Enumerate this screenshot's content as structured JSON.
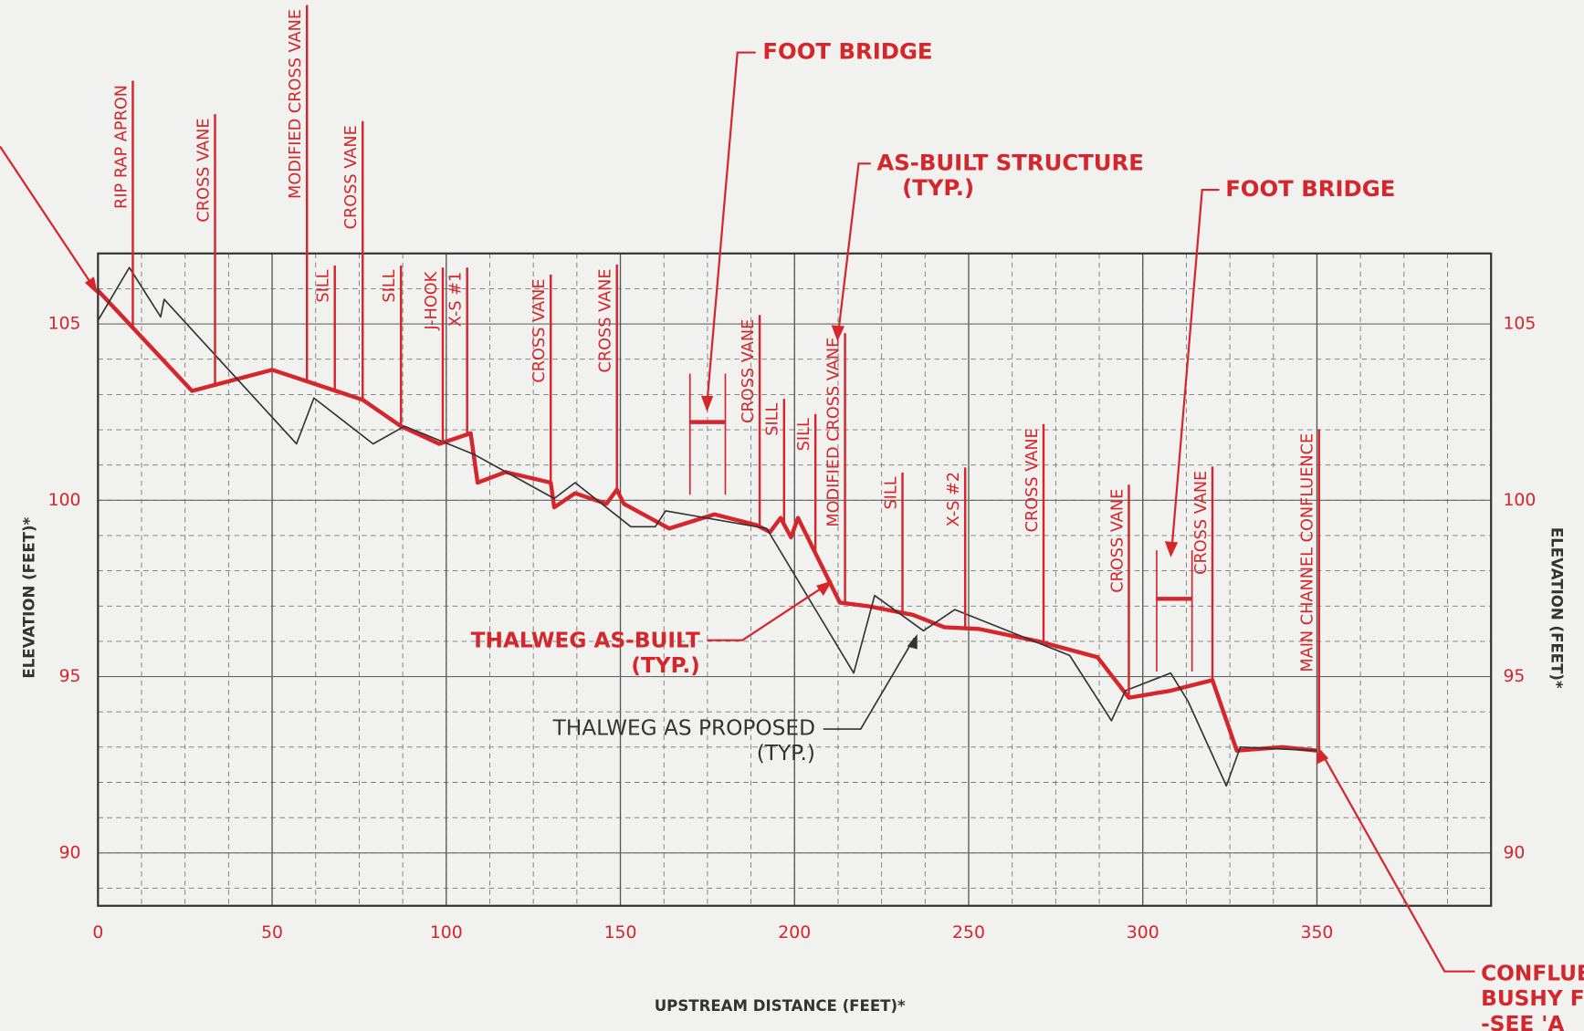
{
  "chart_data": {
    "type": "line",
    "x_label": "UPSTREAM DISTANCE (FEET)*",
    "y_label": "ELEVATION (FEET)*",
    "y2_label": "ELEVATION (FEET)*",
    "xlim": [
      0,
      400
    ],
    "ylim": [
      88.5,
      107
    ],
    "y2lim": [
      88.5,
      107
    ],
    "xticks": [
      0,
      50,
      100,
      150,
      200,
      250,
      300,
      350
    ],
    "yticks": [
      90,
      95,
      100,
      105
    ],
    "y2ticks": [
      90,
      95,
      100,
      105
    ],
    "grid": true,
    "series": [
      {
        "name": "THALWEG AS-BUILT",
        "color": "#d4262b",
        "x": [
          0,
          27,
          50,
          76,
          87,
          98,
          107,
          109,
          117,
          130,
          131,
          137,
          146,
          149,
          151,
          164,
          177,
          189,
          193,
          196,
          199,
          201,
          210,
          213,
          221,
          234,
          243,
          253,
          270,
          287,
          296,
          308,
          320,
          327,
          340,
          350
        ],
        "values": [
          105.95,
          103.1,
          103.7,
          102.85,
          102.1,
          101.6,
          101.9,
          100.5,
          100.8,
          100.5,
          99.8,
          100.2,
          99.9,
          100.3,
          99.9,
          99.2,
          99.6,
          99.3,
          99.1,
          99.5,
          98.95,
          99.5,
          97.7,
          97.1,
          97.0,
          96.75,
          96.4,
          96.35,
          96.0,
          95.55,
          94.4,
          94.6,
          94.9,
          92.9,
          93.0,
          92.9
        ]
      },
      {
        "name": "THALWEG AS PROPOSED",
        "color": "#333333",
        "x": [
          0,
          9,
          18,
          19,
          57,
          62,
          79,
          88,
          108,
          131,
          137,
          153,
          160,
          163,
          192,
          217,
          223,
          237,
          246,
          279,
          291,
          295,
          308,
          313,
          324,
          328,
          350
        ],
        "values": [
          105.1,
          106.6,
          105.2,
          105.7,
          101.6,
          102.9,
          101.6,
          102.1,
          101.3,
          100.05,
          100.5,
          99.25,
          99.25,
          99.7,
          99.2,
          95.1,
          97.3,
          96.3,
          96.9,
          95.6,
          93.75,
          94.6,
          95.1,
          94.3,
          91.9,
          93.0,
          92.9
        ]
      }
    ],
    "structures": [
      {
        "x": 10,
        "label": "RIP RAP APRON"
      },
      {
        "x": 33.6,
        "label": "CROSS VANE"
      },
      {
        "x": 60,
        "label": "MODIFIED CROSS VANE"
      },
      {
        "x": 68,
        "label": "SILL"
      },
      {
        "x": 76,
        "label": "CROSS VANE"
      },
      {
        "x": 87,
        "label": "SILL"
      },
      {
        "x": 99,
        "label": "J-HOOK"
      },
      {
        "x": 106,
        "label": "X-S #1"
      },
      {
        "x": 130,
        "label": "CROSS VANE"
      },
      {
        "x": 149,
        "label": "CROSS VANE"
      },
      {
        "x": 190,
        "label": "CROSS VANE"
      },
      {
        "x": 197,
        "label": "SILL"
      },
      {
        "x": 206,
        "label": "SILL"
      },
      {
        "x": 214.5,
        "label": "MODIFIED CROSS VANE"
      },
      {
        "x": 231,
        "label": "SILL"
      },
      {
        "x": 249,
        "label": "X-S #2"
      },
      {
        "x": 271.5,
        "label": "CROSS VANE"
      },
      {
        "x": 296,
        "label": "CROSS VANE"
      },
      {
        "x": 320,
        "label": "CROSS VANE"
      },
      {
        "x": 350.6,
        "label": "MAIN CHANNEL CONFLUENCE"
      }
    ],
    "callouts": [
      "FOOT BRIDGE",
      "AS-BUILT STRUCTURE",
      "(TYP.)",
      "FOOT BRIDGE",
      "THALWEG AS-BUILT",
      "(TYP.)",
      "THALWEG AS PROPOSED",
      "(TYP.)",
      "CONFLUE",
      "BUSHY F",
      "-SEE 'A"
    ]
  }
}
